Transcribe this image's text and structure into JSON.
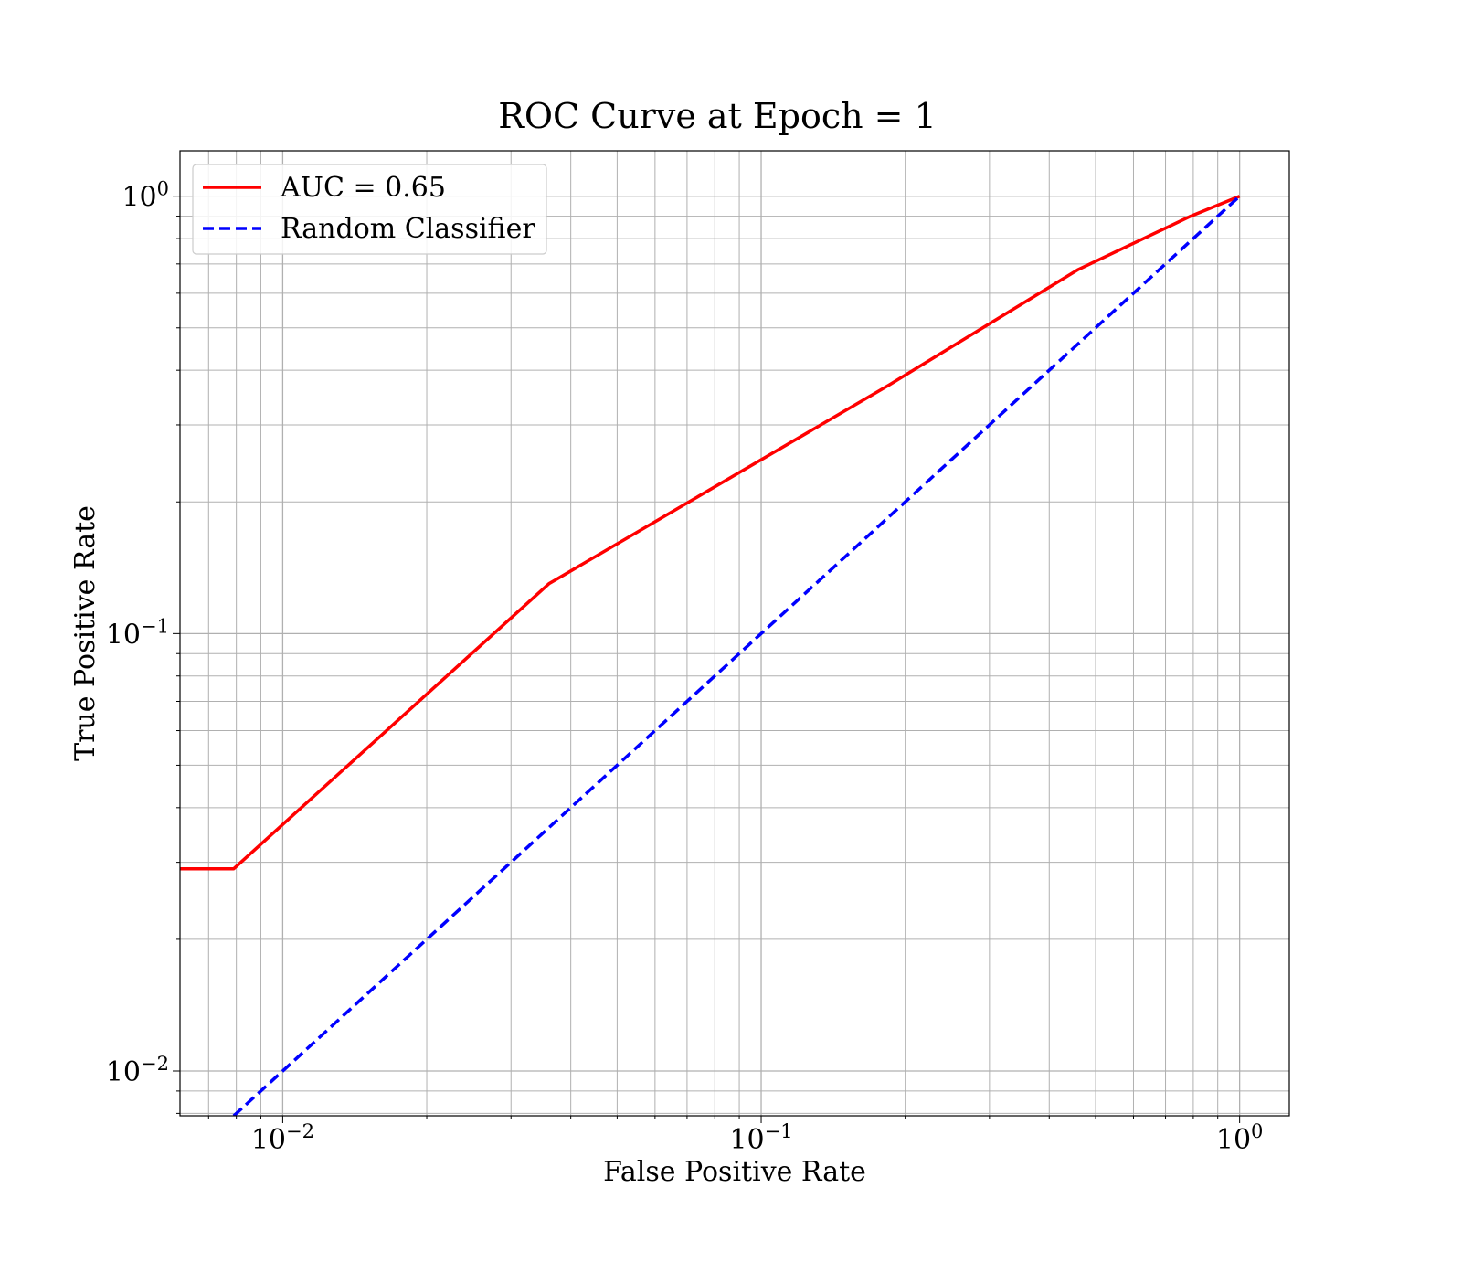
{
  "chart_data": {
    "type": "line",
    "title": "ROC Curve at Epoch = 1",
    "xlabel": "False Positive Rate",
    "ylabel": "True Positive Rate",
    "xscale": "log",
    "yscale": "log",
    "xlim": [
      0.0061,
      1.27
    ],
    "ylim": [
      0.0079,
      1.27
    ],
    "grid": true,
    "grid_minor": true,
    "legend_position": "top-left",
    "x_ticks": [
      {
        "value": 0.01,
        "mant": "10",
        "exp": "−2"
      },
      {
        "value": 0.1,
        "mant": "10",
        "exp": "−1"
      },
      {
        "value": 1,
        "mant": "10",
        "exp": "0"
      }
    ],
    "y_ticks": [
      {
        "value": 0.01,
        "mant": "10",
        "exp": "−2"
      },
      {
        "value": 0.1,
        "mant": "10",
        "exp": "−1"
      },
      {
        "value": 1,
        "mant": "10",
        "exp": "0"
      }
    ],
    "series": [
      {
        "name": "AUC = 0.65",
        "color": "#ff0000",
        "style": "solid",
        "x": [
          0.0061,
          0.0079,
          0.036,
          0.185,
          0.46,
          0.79,
          1.0
        ],
        "y": [
          0.029,
          0.029,
          0.13,
          0.37,
          0.68,
          0.9,
          1.0
        ]
      },
      {
        "name": "Random Classifier",
        "color": "#0000ff",
        "style": "dashed",
        "x": [
          0.0079,
          1.0
        ],
        "y": [
          0.0079,
          1.0
        ]
      }
    ]
  }
}
